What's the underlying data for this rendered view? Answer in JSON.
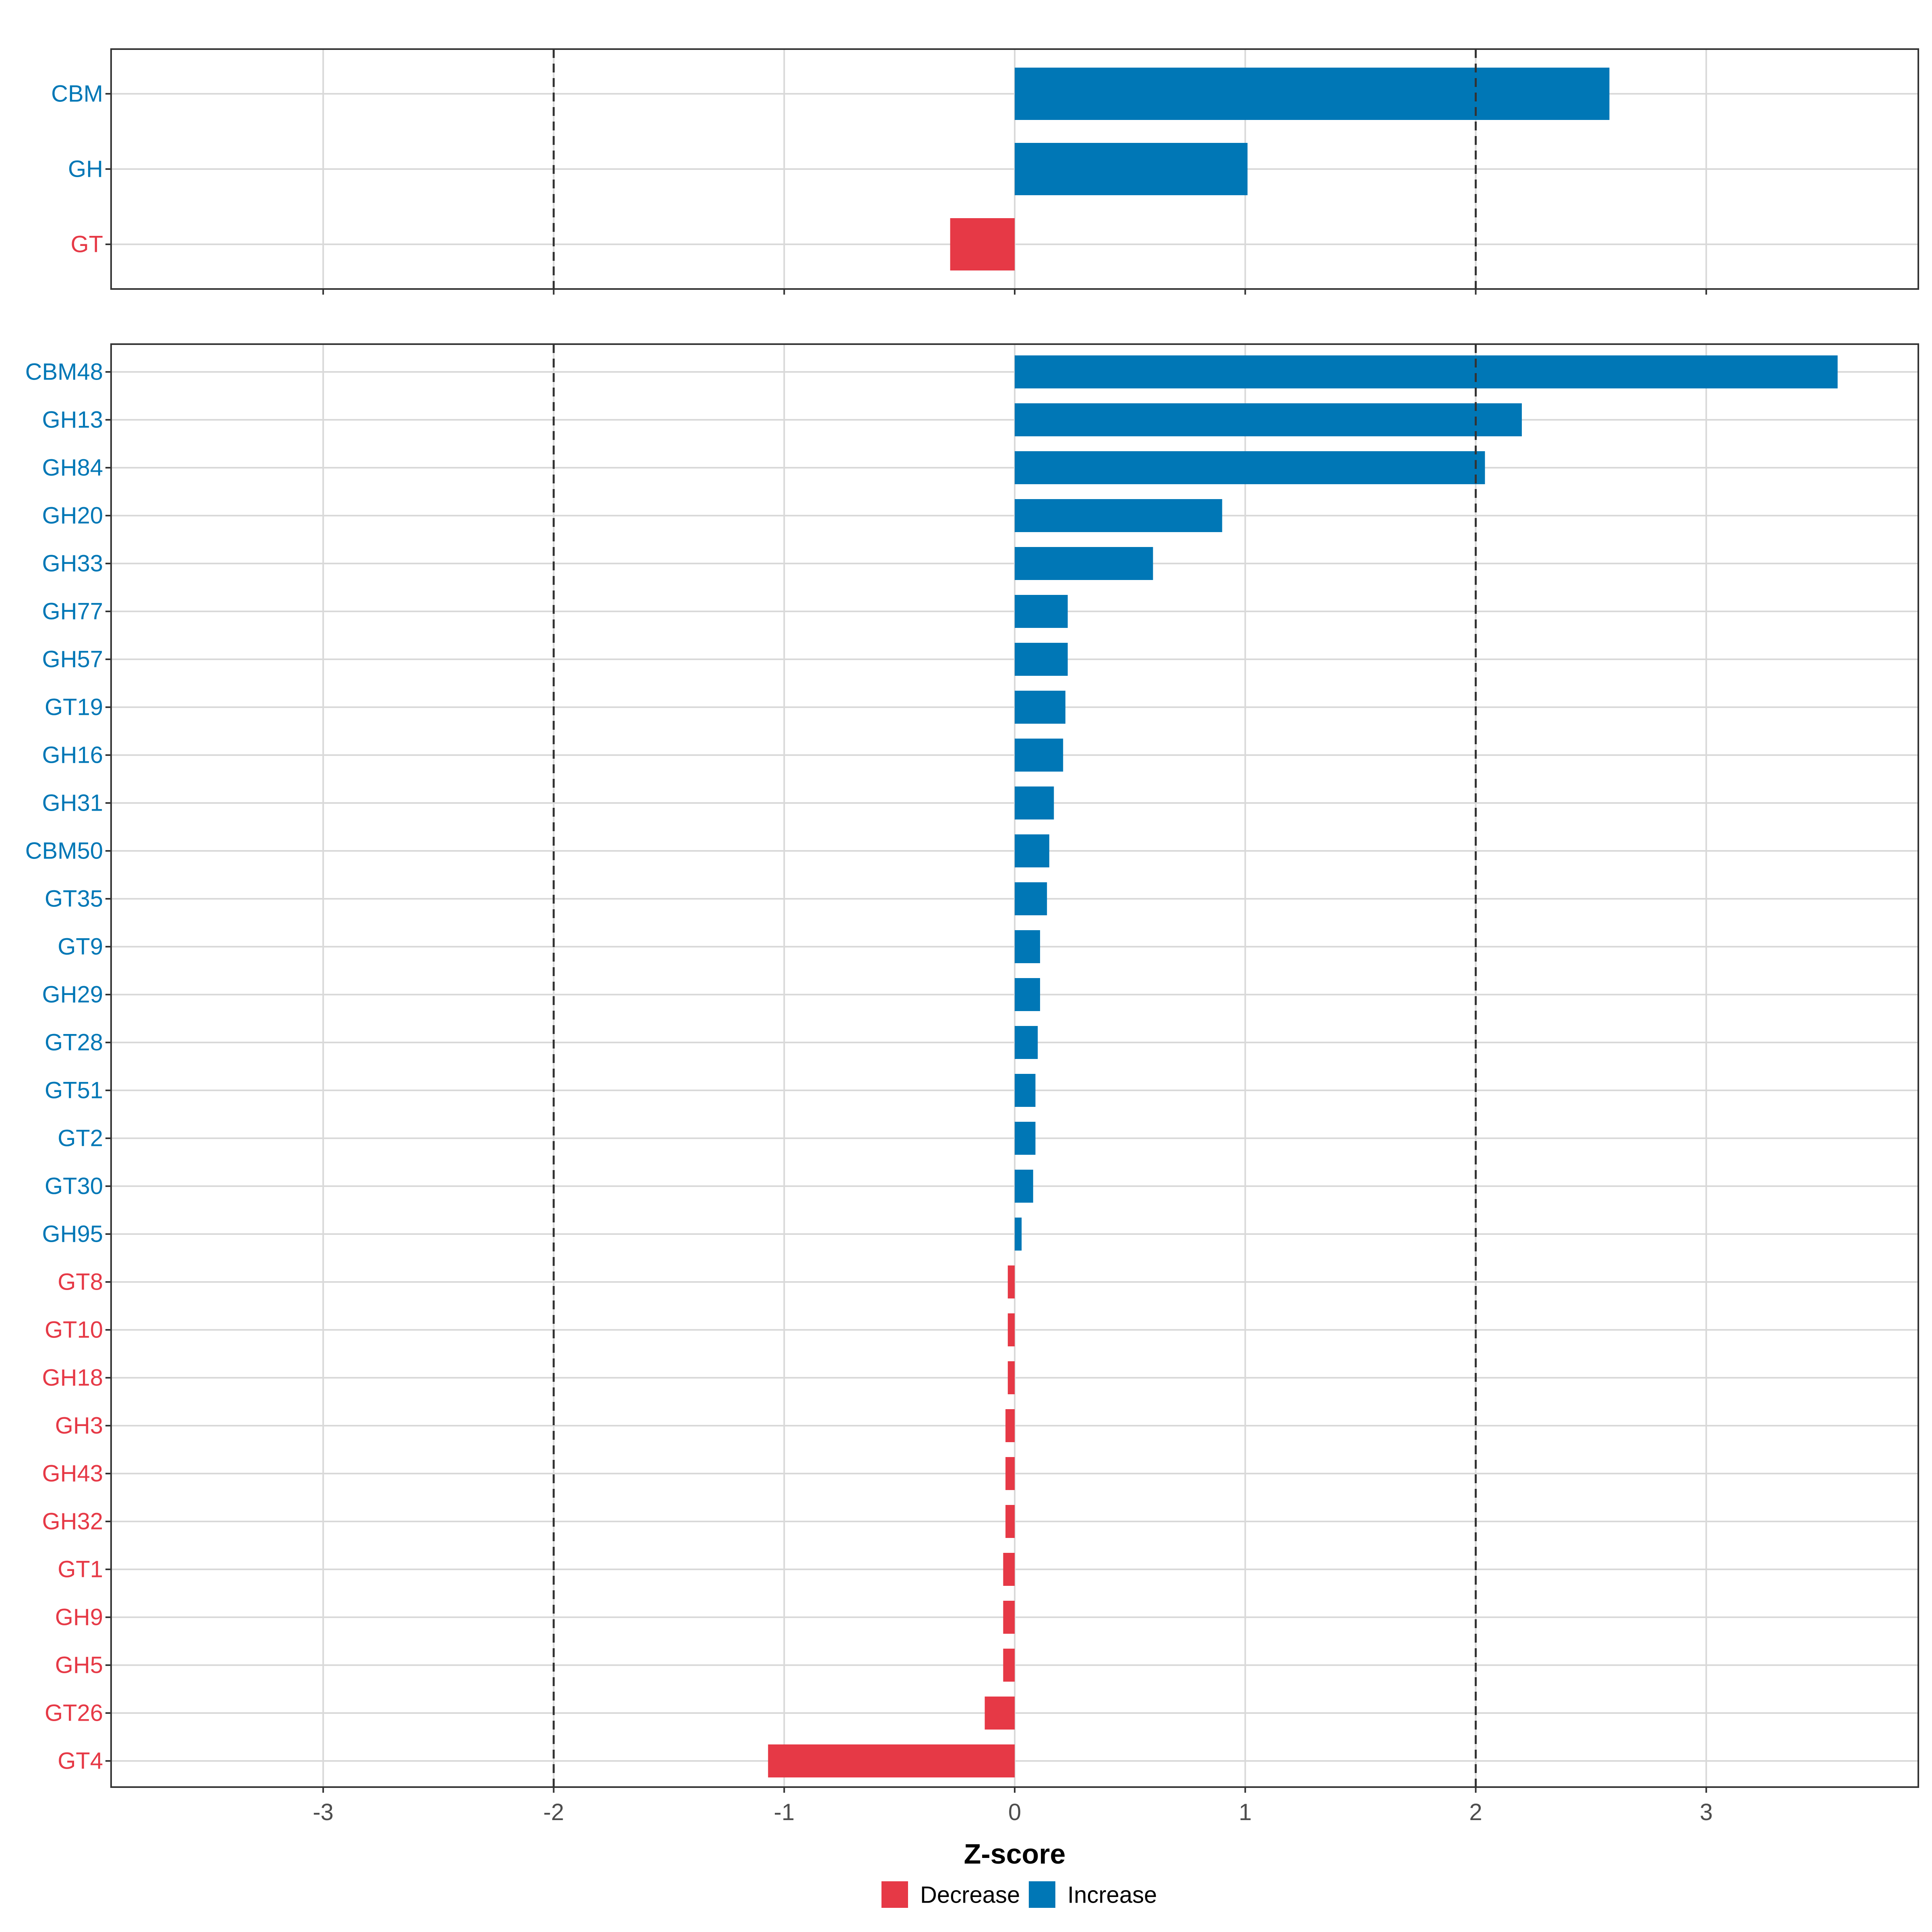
{
  "chart_data": [
    {
      "type": "bar",
      "orientation": "horizontal",
      "panel": "top",
      "categories": [
        "CBM",
        "GH",
        "GT"
      ],
      "values": [
        2.58,
        1.01,
        -0.28
      ],
      "xlim": [
        -3.92,
        3.92
      ],
      "reference_lines": [
        -2,
        2
      ]
    },
    {
      "type": "bar",
      "orientation": "horizontal",
      "panel": "bottom",
      "categories": [
        "CBM48",
        "GH13",
        "GH84",
        "GH20",
        "GH33",
        "GH77",
        "GH57",
        "GT19",
        "GH16",
        "GH31",
        "CBM50",
        "GT35",
        "GT9",
        "GH29",
        "GT28",
        "GT51",
        "GT2",
        "GT30",
        "GH95",
        "GT8",
        "GT10",
        "GH18",
        "GH3",
        "GH43",
        "GH32",
        "GT1",
        "GH9",
        "GH5",
        "GT26",
        "GT4"
      ],
      "values": [
        3.57,
        2.2,
        2.04,
        0.9,
        0.6,
        0.23,
        0.23,
        0.22,
        0.21,
        0.17,
        0.15,
        0.14,
        0.11,
        0.11,
        0.1,
        0.09,
        0.09,
        0.08,
        0.03,
        -0.03,
        -0.03,
        -0.03,
        -0.04,
        -0.04,
        -0.04,
        -0.05,
        -0.05,
        -0.05,
        -0.13,
        -1.07
      ],
      "xlim": [
        -3.92,
        3.92
      ],
      "reference_lines": [
        -2,
        2
      ]
    }
  ],
  "axis": {
    "xlabel": "Z-score",
    "ticks": [
      -3,
      -2,
      -1,
      0,
      1,
      2,
      3
    ],
    "tick_labels": [
      "-3",
      "-2",
      "-1",
      "0",
      "1",
      "2",
      "3"
    ]
  },
  "legend": {
    "position": "bottom",
    "items": [
      {
        "label": "Decrease",
        "color": "#e63946"
      },
      {
        "label": "Increase",
        "color": "#0077b6"
      }
    ]
  },
  "colors": {
    "decrease": "#e63946",
    "increase": "#0077b6",
    "grid": "#d9d9d9",
    "panel_border": "#333333",
    "ref_line": "#333333"
  }
}
